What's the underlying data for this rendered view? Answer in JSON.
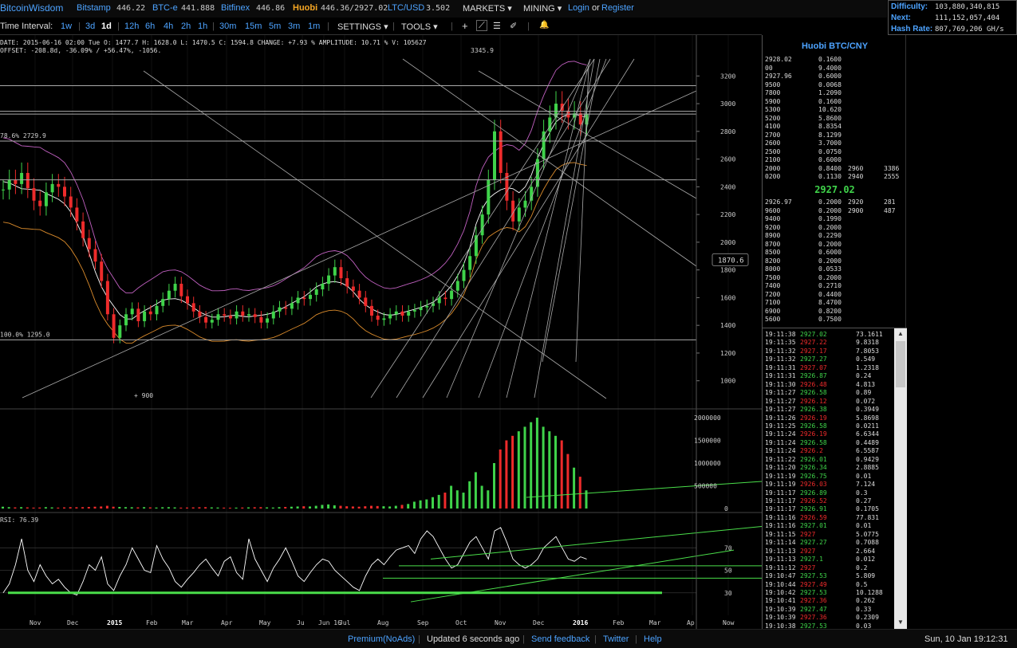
{
  "header": {
    "brand": "BitcoinWisdom",
    "exchanges": [
      {
        "name": "Bitstamp",
        "price": "446.22"
      },
      {
        "name": "BTC-e",
        "price": "441.888"
      },
      {
        "name": "Bitfinex",
        "price": "446.86"
      },
      {
        "name": "Huobi",
        "price": "446.36/2927.02"
      },
      {
        "name": "LTC/USD",
        "price": "3.502"
      }
    ],
    "markets_label": "MARKETS",
    "mining_label": "MINING",
    "login_label": "Login",
    "or_label": "or",
    "register_label": "Register",
    "dropdown_glyph": "▾"
  },
  "network": {
    "difficulty_label": "Difficulty:",
    "difficulty": "103,880,340,815",
    "next_label": "Next:",
    "next": "111,152,057,404",
    "hashrate_label": "Hash Rate:",
    "hashrate": "807,769,206 GH/s"
  },
  "toolbar": {
    "interval_label": "Time Interval:",
    "intervals": [
      "1w",
      "3d",
      "1d",
      "12h",
      "6h",
      "4h",
      "2h",
      "1h",
      "30m",
      "15m",
      "5m",
      "3m",
      "1m"
    ],
    "active_interval": "1d",
    "separator": "|",
    "settings_label": "SETTINGS",
    "tools_label": "TOOLS",
    "tool_glyphs": [
      "+",
      "⟋",
      "☰",
      "✐",
      "🔔"
    ]
  },
  "info": {
    "line1": "DATE: 2015-06-16 02:00 Tue    O: 1477.7    H: 1628.0    L: 1470.5    C: 1594.8   CHANGE: +7.93 %   AMPLITUDE: 10.71 %   V: 105627",
    "line2": "OFFSET: -208.8d, -36.09% / +56.47%, -1056."
  },
  "chart_data": [
    {
      "type": "line",
      "panel": "price",
      "y_ticks": [
        1000,
        1200,
        1400,
        1600,
        1800,
        2000,
        2200,
        2400,
        2600,
        2800,
        3000,
        3200
      ],
      "ylim": [
        820,
        3380
      ],
      "annotations": [
        {
          "label": "3345.9",
          "x": "Nov",
          "y": 3345.9
        },
        {
          "label": "900",
          "x": "Dec 2014",
          "y": 900
        },
        {
          "label": "78.6% 2729.9",
          "y": 2729.9
        },
        {
          "label": "100.0% 1295.0",
          "y": 1295.0
        }
      ],
      "hover_label": "1870.6",
      "horizontal_levels": [
        3130,
        2945,
        2925,
        2729.9,
        2450,
        1295
      ],
      "close_series": [
        2380,
        2450,
        2420,
        2500,
        2390,
        2300,
        2260,
        2360,
        2420,
        2400,
        2330,
        2250,
        2150,
        2030,
        1950,
        1860,
        1720,
        1480,
        1310,
        1400,
        1480,
        1520,
        1430,
        1500,
        1480,
        1540,
        1590,
        1650,
        1700,
        1610,
        1560,
        1500,
        1460,
        1420,
        1440,
        1480,
        1470,
        1450,
        1500,
        1470,
        1480,
        1460,
        1420,
        1450,
        1500,
        1530,
        1520,
        1560,
        1600,
        1590,
        1620,
        1660,
        1700,
        1760,
        1820,
        1740,
        1680,
        1650,
        1600,
        1540,
        1470,
        1440,
        1450,
        1480,
        1500,
        1470,
        1500,
        1510,
        1530,
        1540,
        1560,
        1600,
        1590,
        1650,
        1720,
        1800,
        1900,
        2050,
        2200,
        2450,
        2800,
        2500,
        2300,
        2150,
        2250,
        2300,
        2400,
        2600,
        2800,
        2900,
        3000,
        2950,
        2900,
        2930,
        2850,
        2927
      ],
      "volume_ticks": [
        0,
        500000,
        1000000,
        1500000,
        2000000
      ],
      "volume_series": [
        40000,
        30000,
        25000,
        30000,
        25000,
        20000,
        22000,
        30000,
        25000,
        20000,
        25000,
        30000,
        28000,
        30000,
        35000,
        40000,
        45000,
        60000,
        40000,
        35000,
        30000,
        28000,
        25000,
        30000,
        25000,
        22000,
        28000,
        30000,
        25000,
        20000,
        22000,
        25000,
        28000,
        30000,
        25000,
        22000,
        20000,
        18000,
        20000,
        22000,
        25000,
        28000,
        30000,
        25000,
        22000,
        30000,
        35000,
        40000,
        45000,
        50000,
        45000,
        60000,
        80000,
        90000,
        70000,
        60000,
        50000,
        45000,
        40000,
        50000,
        60000,
        55000,
        50000,
        45000,
        60000,
        80000,
        100000,
        150000,
        180000,
        200000,
        250000,
        300000,
        350000,
        500000,
        400000,
        350000,
        600000,
        800000,
        500000,
        400000,
        1000000,
        1300000,
        1500000,
        1600000,
        1700000,
        1800000,
        1900000,
        2000000,
        1800000,
        1700000,
        1600000,
        1500000,
        1200000,
        900000,
        700000,
        400000
      ],
      "rsi_label": "RSI: 76.39",
      "rsi_ticks": [
        30,
        50,
        70
      ],
      "rsi_series": [
        30,
        38,
        55,
        78,
        50,
        40,
        55,
        45,
        38,
        42,
        35,
        30,
        28,
        40,
        55,
        50,
        62,
        38,
        32,
        45,
        55,
        70,
        60,
        50,
        48,
        72,
        60,
        52,
        40,
        35,
        42,
        48,
        55,
        60,
        52,
        45,
        58,
        62,
        48,
        42,
        78,
        60,
        50,
        40,
        52,
        60,
        70,
        58,
        45,
        40,
        48,
        55,
        60,
        58,
        50,
        45,
        40,
        35,
        32,
        45,
        55,
        60,
        55,
        62,
        68,
        70,
        72,
        65,
        78,
        85,
        80,
        70,
        60,
        52,
        55,
        65,
        75,
        80,
        70,
        60,
        85,
        88,
        75,
        60,
        55,
        52,
        55,
        60,
        70,
        75,
        80,
        70,
        60,
        58,
        62,
        60
      ],
      "x_ticks": [
        "Nov",
        "Dec",
        "2015",
        "Feb",
        "Mar",
        "Apr",
        "May",
        "Ju",
        "Jun 16",
        "Jul",
        "Aug",
        "Sep",
        "Oct",
        "Nov",
        "Dec",
        "2016",
        "Feb",
        "Mar",
        "Ap",
        "Now"
      ],
      "colors": {
        "up": "#3fd34a",
        "down": "#ee2b2b",
        "grid": "#222222",
        "bb_upper": "#c060c0",
        "bb_lower": "#d98a2b",
        "ma": "#ffffff",
        "lines": "#aaaaaa",
        "rsi_trend": "#4ade4a"
      }
    }
  ],
  "orderbook": {
    "title": "Huobi BTC/CNY",
    "asks": [
      {
        "price": "2928.02",
        "amount": "0.1600"
      },
      {
        "price": "00",
        "amount": "9.4000"
      },
      {
        "price": "2927.96",
        "amount": "0.6000"
      },
      {
        "price": "9500",
        "amount": "0.0068"
      },
      {
        "price": "7800",
        "amount": "1.2090"
      },
      {
        "price": "5900",
        "amount": "0.1600"
      },
      {
        "price": "5300",
        "amount": "10.620"
      },
      {
        "price": "5200",
        "amount": "5.8600"
      },
      {
        "price": "4100",
        "amount": "8.8354"
      },
      {
        "price": "2700",
        "amount": "8.1299"
      },
      {
        "price": "2600",
        "amount": "3.7000"
      },
      {
        "price": "2500",
        "amount": "0.0750"
      },
      {
        "price": "2100",
        "amount": "0.6000"
      },
      {
        "price": "2000",
        "amount": "0.8400",
        "sum_price": "2960",
        "sum": "3386"
      },
      {
        "price": "0200",
        "amount": "0.1130",
        "sum_price": "2940",
        "sum": "2555"
      }
    ],
    "last_price": "2927.02",
    "bids": [
      {
        "price": "2926.97",
        "amount": "0.2000",
        "sum_price": "2920",
        "sum": "281"
      },
      {
        "price": "9600",
        "amount": "0.2000",
        "sum_price": "2900",
        "sum": "487"
      },
      {
        "price": "9400",
        "amount": "0.1990"
      },
      {
        "price": "9200",
        "amount": "0.2000"
      },
      {
        "price": "8900",
        "amount": "0.2290"
      },
      {
        "price": "8700",
        "amount": "0.2000"
      },
      {
        "price": "8500",
        "amount": "0.6000"
      },
      {
        "price": "8200",
        "amount": "0.2000"
      },
      {
        "price": "8000",
        "amount": "0.0533"
      },
      {
        "price": "7500",
        "amount": "0.2000"
      },
      {
        "price": "7400",
        "amount": "0.2710"
      },
      {
        "price": "7200",
        "amount": "0.4400"
      },
      {
        "price": "7100",
        "amount": "8.4700"
      },
      {
        "price": "6900",
        "amount": "0.8200"
      },
      {
        "price": "5600",
        "amount": "0.7500"
      }
    ]
  },
  "trades": [
    {
      "time": "19:11:38",
      "price": "2927.02",
      "amount": "73.1611",
      "side": "up"
    },
    {
      "time": "19:11:35",
      "price": "2927.22",
      "amount": "9.8318",
      "side": "down"
    },
    {
      "time": "19:11:32",
      "price": "2927.17",
      "amount": "7.8053",
      "side": "down"
    },
    {
      "time": "19:11:32",
      "price": "2927.27",
      "amount": "0.549",
      "side": "up"
    },
    {
      "time": "19:11:31",
      "price": "2927.07",
      "amount": "1.2318",
      "side": "down"
    },
    {
      "time": "19:11:31",
      "price": "2926.87",
      "amount": "0.24",
      "side": "up"
    },
    {
      "time": "19:11:30",
      "price": "2926.48",
      "amount": "4.813",
      "side": "down"
    },
    {
      "time": "19:11:27",
      "price": "2926.58",
      "amount": "0.89",
      "side": "up"
    },
    {
      "time": "19:11:27",
      "price": "2926.12",
      "amount": "0.072",
      "side": "down"
    },
    {
      "time": "19:11:27",
      "price": "2926.38",
      "amount": "0.3949",
      "side": "up"
    },
    {
      "time": "19:11:26",
      "price": "2926.19",
      "amount": "5.8698",
      "side": "down"
    },
    {
      "time": "19:11:25",
      "price": "2926.58",
      "amount": "0.0211",
      "side": "up"
    },
    {
      "time": "19:11:24",
      "price": "2926.19",
      "amount": "6.6344",
      "side": "down"
    },
    {
      "time": "19:11:24",
      "price": "2926.58",
      "amount": "0.4489",
      "side": "up"
    },
    {
      "time": "19:11:24",
      "price": "2926.2",
      "amount": "6.5587",
      "side": "down"
    },
    {
      "time": "19:11:22",
      "price": "2926.01",
      "amount": "0.9429",
      "side": "up"
    },
    {
      "time": "19:11:20",
      "price": "2926.34",
      "amount": "2.8885",
      "side": "up"
    },
    {
      "time": "19:11:19",
      "price": "2926.75",
      "amount": "0.01",
      "side": "up"
    },
    {
      "time": "19:11:19",
      "price": "2926.03",
      "amount": "7.124",
      "side": "down"
    },
    {
      "time": "19:11:17",
      "price": "2926.89",
      "amount": "0.3",
      "side": "up"
    },
    {
      "time": "19:11:17",
      "price": "2926.52",
      "amount": "0.27",
      "side": "down"
    },
    {
      "time": "19:11:17",
      "price": "2926.91",
      "amount": "0.1705",
      "side": "up"
    },
    {
      "time": "19:11:16",
      "price": "2926.59",
      "amount": "77.831",
      "side": "down"
    },
    {
      "time": "19:11:16",
      "price": "2927.01",
      "amount": "0.01",
      "side": "up"
    },
    {
      "time": "19:11:15",
      "price": "2927",
      "amount": "5.0775",
      "side": "down"
    },
    {
      "time": "19:11:14",
      "price": "2927.27",
      "amount": "0.7088",
      "side": "up"
    },
    {
      "time": "19:11:13",
      "price": "2927",
      "amount": "2.664",
      "side": "down"
    },
    {
      "time": "19:11:13",
      "price": "2927.1",
      "amount": "0.012",
      "side": "up"
    },
    {
      "time": "19:11:12",
      "price": "2927",
      "amount": "0.2",
      "side": "down"
    },
    {
      "time": "19:10:47",
      "price": "2927.53",
      "amount": "5.809",
      "side": "up"
    },
    {
      "time": "19:10:44",
      "price": "2927.49",
      "amount": "0.5",
      "side": "down"
    },
    {
      "time": "19:10:42",
      "price": "2927.53",
      "amount": "10.1288",
      "side": "up"
    },
    {
      "time": "19:10:41",
      "price": "2927.36",
      "amount": "0.262",
      "side": "down"
    },
    {
      "time": "19:10:39",
      "price": "2927.47",
      "amount": "0.33",
      "side": "up"
    },
    {
      "time": "19:10:39",
      "price": "2927.36",
      "amount": "0.2309",
      "side": "down"
    },
    {
      "time": "19:10:38",
      "price": "2927.53",
      "amount": "0.03",
      "side": "up"
    }
  ],
  "footer": {
    "premium_label": "Premium(NoAds)",
    "separator": "|",
    "updated_label": "Updated 6 seconds ago",
    "feedback_label": "Send feedback",
    "twitter_label": "Twitter",
    "help_label": "Help",
    "datetime": "Sun, 10 Jan 19:12:31"
  }
}
